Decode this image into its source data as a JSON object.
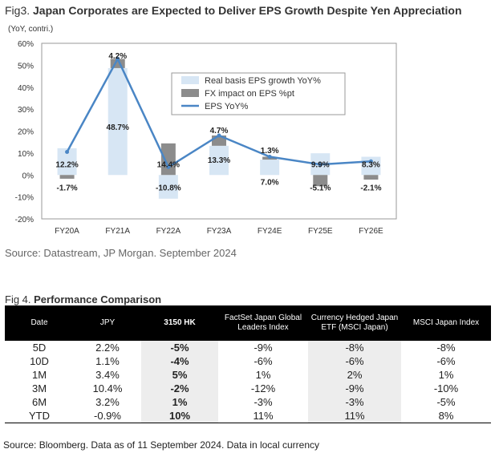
{
  "figure3": {
    "number": "Fig3.",
    "title": "Japan Corporates are Expected to Deliver EPS Growth Despite Yen Appreciation",
    "unit": "(YoY, contri.)",
    "source": "Source: Datastream, JP Morgan. September 2024"
  },
  "chart_data": {
    "type": "bar",
    "categories": [
      "FY20A",
      "FY21A",
      "FY22A",
      "FY23A",
      "FY24E",
      "FY25E",
      "FY26E"
    ],
    "yticks": [
      "60%",
      "50%",
      "40%",
      "30%",
      "20%",
      "10%",
      "0%",
      "-10%",
      "-20%"
    ],
    "ylim": [
      -20,
      60
    ],
    "series": [
      {
        "name": "Real basis EPS growth YoY%",
        "type": "bar",
        "color": "#d7e6f4",
        "values": [
          12.2,
          48.7,
          -10.8,
          13.3,
          7.0,
          9.9,
          8.3
        ],
        "labels": [
          "12.2%",
          "48.7%",
          "-10.8%",
          "13.3%",
          "7.0%",
          "9.9%",
          "8.3%"
        ]
      },
      {
        "name": "FX impact on EPS %pt",
        "type": "bar",
        "color": "#8c8c8c",
        "values": [
          -1.7,
          4.2,
          14.4,
          4.7,
          1.3,
          -5.1,
          -2.1
        ],
        "labels": [
          "-1.7%",
          "4.2%",
          "14.4%",
          "4.7%",
          "1.3%",
          "-5.1%",
          "-2.1%"
        ]
      },
      {
        "name": "EPS YoY%",
        "type": "line",
        "color": "#4a86c5",
        "values": [
          10.5,
          52.9,
          3.6,
          18.0,
          8.3,
          4.8,
          6.2
        ]
      }
    ]
  },
  "table": {
    "title_prefix": "Fig 4.",
    "title": "Performance Comparison",
    "headers": [
      "Date",
      "JPY",
      "3150 HK",
      "FactSet Japan Global Leaders Index",
      "Currency Hedged Japan ETF (MSCI Japan)",
      "MSCI Japan Index"
    ],
    "rows": [
      [
        "5D",
        "2.2%",
        "-5%",
        "-9%",
        "-8%",
        "-8%"
      ],
      [
        "10D",
        "1.1%",
        "-4%",
        "-6%",
        "-6%",
        "-6%"
      ],
      [
        "1M",
        "3.4%",
        "5%",
        "1%",
        "2%",
        "1%"
      ],
      [
        "3M",
        "10.4%",
        "-2%",
        "-12%",
        "-9%",
        "-10%"
      ],
      [
        "6M",
        "3.2%",
        "1%",
        "-3%",
        "-3%",
        "-5%"
      ],
      [
        "YTD",
        "-0.9%",
        "10%",
        "11%",
        "11%",
        "8%"
      ]
    ],
    "source": "Source: Bloomberg. Data as of 11 September 2024. Data in local currency"
  }
}
